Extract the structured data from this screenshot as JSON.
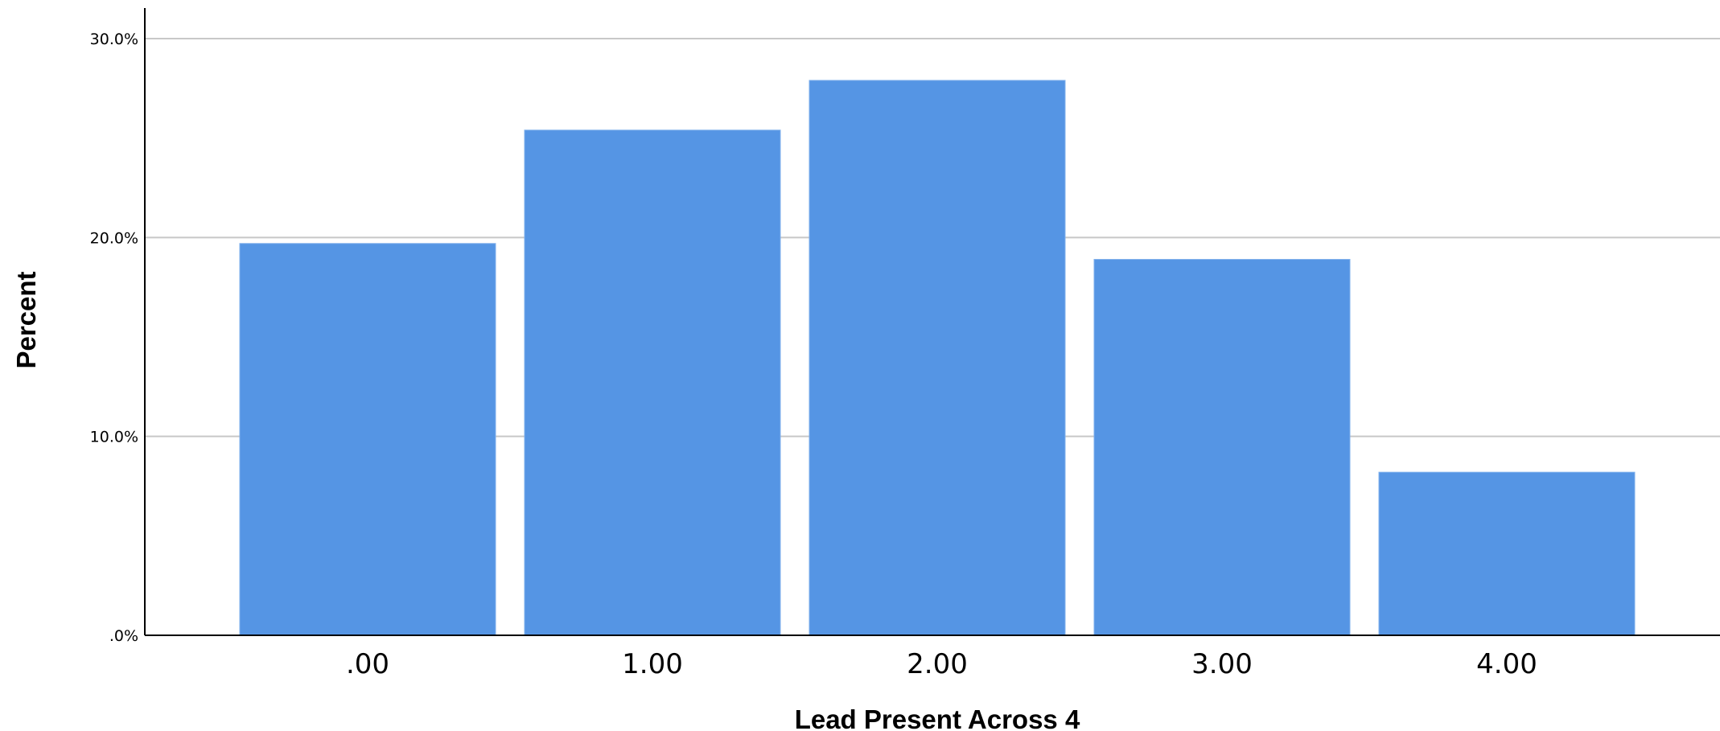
{
  "chart_data": {
    "type": "bar",
    "categories": [
      ".00",
      "1.00",
      "2.00",
      "3.00",
      "4.00"
    ],
    "values": [
      19.7,
      25.4,
      27.9,
      18.9,
      8.2
    ],
    "xlabel": "Lead Present Across 4",
    "ylabel": "Percent",
    "ylim": [
      0,
      30
    ],
    "yticks": [
      0,
      10,
      20,
      30
    ],
    "ytick_labels": [
      ".0%",
      "10.0%",
      "20.0%",
      "30.0%"
    ],
    "grid": true,
    "legend": "none",
    "colors": {
      "bar": "#5595E4",
      "grid": "#C8C8C8",
      "axis": "#000000"
    }
  }
}
